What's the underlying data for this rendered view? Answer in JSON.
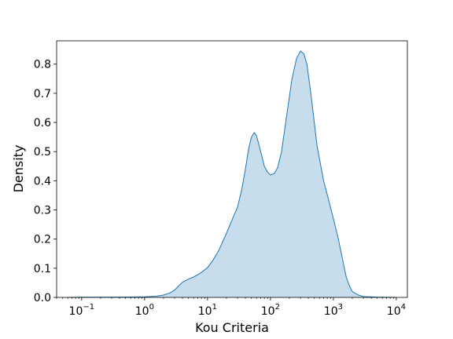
{
  "chart_data": {
    "type": "area",
    "title": "",
    "xlabel": "Kou Criteria",
    "ylabel": "Density",
    "xscale": "log",
    "xlim": [
      0.04,
      15000
    ],
    "ylim": [
      0,
      0.88
    ],
    "grid": false,
    "legend": "none",
    "x_ticks": [
      {
        "value": 0.1,
        "base": "10",
        "exp": "−1"
      },
      {
        "value": 1,
        "base": "10",
        "exp": "0"
      },
      {
        "value": 10,
        "base": "10",
        "exp": "1"
      },
      {
        "value": 100,
        "base": "10",
        "exp": "2"
      },
      {
        "value": 1000,
        "base": "10",
        "exp": "3"
      },
      {
        "value": 10000,
        "base": "10",
        "exp": "4"
      }
    ],
    "y_ticks": [
      0.0,
      0.1,
      0.2,
      0.3,
      0.4,
      0.5,
      0.6,
      0.7,
      0.8
    ],
    "series": [
      {
        "color": "#1f77b4",
        "fill_color": "#1f77b4",
        "fill_opacity": 0.25,
        "points": [
          [
            0.06,
            0.0
          ],
          [
            0.1,
            0.0005
          ],
          [
            0.2,
            0.0008
          ],
          [
            0.5,
            0.001
          ],
          [
            1.0,
            0.002
          ],
          [
            1.5,
            0.004
          ],
          [
            2.0,
            0.008
          ],
          [
            2.5,
            0.015
          ],
          [
            3.0,
            0.025
          ],
          [
            3.5,
            0.04
          ],
          [
            4.0,
            0.052
          ],
          [
            5.0,
            0.063
          ],
          [
            6.0,
            0.07
          ],
          [
            7.0,
            0.078
          ],
          [
            8.0,
            0.086
          ],
          [
            10.0,
            0.102
          ],
          [
            12.0,
            0.125
          ],
          [
            15.0,
            0.16
          ],
          [
            20.0,
            0.22
          ],
          [
            25.0,
            0.27
          ],
          [
            30.0,
            0.31
          ],
          [
            35.0,
            0.37
          ],
          [
            40.0,
            0.44
          ],
          [
            45.0,
            0.51
          ],
          [
            50.0,
            0.55
          ],
          [
            55.0,
            0.565
          ],
          [
            60.0,
            0.555
          ],
          [
            70.0,
            0.5
          ],
          [
            80.0,
            0.45
          ],
          [
            90.0,
            0.43
          ],
          [
            100.0,
            0.42
          ],
          [
            115.0,
            0.425
          ],
          [
            130.0,
            0.445
          ],
          [
            150.0,
            0.5
          ],
          [
            180.0,
            0.62
          ],
          [
            220.0,
            0.75
          ],
          [
            260.0,
            0.82
          ],
          [
            300.0,
            0.845
          ],
          [
            340.0,
            0.835
          ],
          [
            380.0,
            0.8
          ],
          [
            450.0,
            0.68
          ],
          [
            550.0,
            0.52
          ],
          [
            700.0,
            0.4
          ],
          [
            850.0,
            0.33
          ],
          [
            1000.0,
            0.27
          ],
          [
            1200.0,
            0.2
          ],
          [
            1400.0,
            0.13
          ],
          [
            1600.0,
            0.07
          ],
          [
            1800.0,
            0.04
          ],
          [
            2000.0,
            0.02
          ],
          [
            2500.0,
            0.008
          ],
          [
            3000.0,
            0.003
          ],
          [
            5000.0,
            0.001
          ],
          [
            10000.0,
            0.0
          ]
        ]
      }
    ]
  }
}
